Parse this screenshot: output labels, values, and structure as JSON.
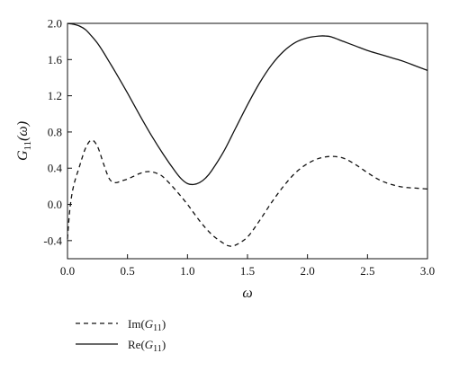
{
  "chart_data": {
    "type": "line",
    "title": "",
    "xlabel": "ω",
    "ylabel": "G11(ω)",
    "ylabel_parts": {
      "base": "G",
      "sub": "11",
      "arg": "(ω)"
    },
    "xlim": [
      0,
      3.0
    ],
    "ylim": [
      -0.6,
      2.0
    ],
    "grid": false,
    "legend_position": "bottom-left-outside",
    "xticks": [
      "0.0",
      "0.5",
      "1.0",
      "1.5",
      "2.0",
      "2.5",
      "3.0"
    ],
    "yticks": [
      "-0.4",
      "0.0",
      "0.4",
      "0.8",
      "1.2",
      "1.6",
      "2.0"
    ],
    "series": [
      {
        "name": "Im(G11)",
        "legend_parts": {
          "pre": "Im(",
          "base": "G",
          "sub": "11",
          "post": ")"
        },
        "style": "dashed",
        "color": "#111111",
        "x": [
          0.0,
          0.02,
          0.05,
          0.1,
          0.15,
          0.2,
          0.25,
          0.3,
          0.35,
          0.4,
          0.45,
          0.5,
          0.55,
          0.6,
          0.65,
          0.7,
          0.75,
          0.8,
          0.9,
          1.0,
          1.1,
          1.2,
          1.3,
          1.35,
          1.4,
          1.5,
          1.6,
          1.7,
          1.8,
          1.9,
          2.0,
          2.1,
          2.2,
          2.3,
          2.4,
          2.5,
          2.6,
          2.7,
          2.8,
          2.9,
          3.0
        ],
        "values": [
          -0.38,
          -0.05,
          0.2,
          0.42,
          0.62,
          0.71,
          0.64,
          0.45,
          0.28,
          0.24,
          0.26,
          0.28,
          0.31,
          0.34,
          0.36,
          0.36,
          0.34,
          0.3,
          0.16,
          0.0,
          -0.18,
          -0.33,
          -0.43,
          -0.46,
          -0.45,
          -0.36,
          -0.18,
          0.02,
          0.2,
          0.35,
          0.45,
          0.51,
          0.53,
          0.51,
          0.44,
          0.35,
          0.27,
          0.22,
          0.19,
          0.18,
          0.17
        ]
      },
      {
        "name": "Re(G11)",
        "legend_parts": {
          "pre": "Re(",
          "base": "G",
          "sub": "11",
          "post": ")"
        },
        "style": "solid",
        "color": "#111111",
        "x": [
          0.0,
          0.05,
          0.1,
          0.15,
          0.2,
          0.25,
          0.3,
          0.35,
          0.4,
          0.5,
          0.6,
          0.7,
          0.8,
          0.9,
          0.95,
          1.0,
          1.05,
          1.1,
          1.15,
          1.2,
          1.3,
          1.4,
          1.5,
          1.6,
          1.7,
          1.8,
          1.9,
          2.0,
          2.1,
          2.15,
          2.2,
          2.3,
          2.4,
          2.5,
          2.6,
          2.7,
          2.8,
          2.9,
          3.0
        ],
        "values": [
          2.0,
          1.99,
          1.97,
          1.93,
          1.86,
          1.78,
          1.68,
          1.57,
          1.46,
          1.23,
          0.99,
          0.76,
          0.55,
          0.36,
          0.28,
          0.23,
          0.22,
          0.24,
          0.29,
          0.37,
          0.58,
          0.84,
          1.1,
          1.34,
          1.54,
          1.69,
          1.79,
          1.84,
          1.86,
          1.86,
          1.85,
          1.8,
          1.75,
          1.7,
          1.66,
          1.62,
          1.58,
          1.53,
          1.48
        ]
      }
    ]
  }
}
